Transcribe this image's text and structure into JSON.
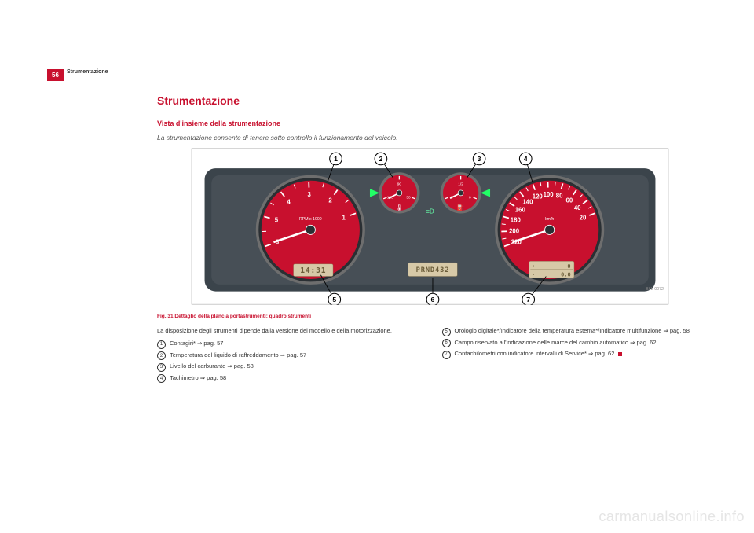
{
  "page_number": "56",
  "header_section": "Strumentazione",
  "title": "Strumentazione",
  "subtitle": "Vista d'insieme della strumentazione",
  "intro": "La strumentazione consente di tenere sotto controllo il funzionamento del veicolo.",
  "figure": {
    "caption": "Fig. 31   Dettaglio della plancia portastrumenti: quadro strumenti",
    "code": "B6L-0072",
    "callouts": [
      "1",
      "2",
      "3",
      "4",
      "5",
      "6",
      "7"
    ],
    "style": {
      "panel_bg": "#3b444b",
      "gauge_face": "#c8102e",
      "gauge_ring": "#6e6e6e",
      "tick_color": "#ffffff",
      "needle_color": "#ffffff",
      "lcd_bg": "#d7c9a7",
      "lcd_text": "#6b5d3a",
      "bubble_fill": "#ffffff",
      "bubble_stroke": "#000000",
      "line_color": "#000000"
    },
    "tachometer": {
      "unit_label": "RPM x 1000",
      "ticks": [
        "1",
        "2",
        "3",
        "4",
        "5",
        "6"
      ],
      "redline_from": 5,
      "lcd": "14:31"
    },
    "temp_gauge": {
      "ticks": [
        "50",
        "90",
        "130"
      ]
    },
    "fuel_gauge": {
      "ticks": [
        "0",
        "1/2",
        "1"
      ]
    },
    "speedometer": {
      "unit_label": "km/h",
      "ticks": [
        "20",
        "40",
        "60",
        "80",
        "100",
        "120",
        "140",
        "160",
        "180",
        "200",
        "220"
      ],
      "lcd_top": "0",
      "lcd_bottom": "0.0"
    },
    "center_lcd": "PRND432"
  },
  "left_col": {
    "lead": "La disposizione degli strumenti dipende dalla versione del modello e della motorizzazione.",
    "items": [
      {
        "n": "1",
        "text": "Contagiri* ⇒ pag. 57"
      },
      {
        "n": "2",
        "text": "Temperatura del liquido di raffreddamento ⇒ pag. 57"
      },
      {
        "n": "3",
        "text": "Livello del carburante ⇒ pag. 58"
      },
      {
        "n": "4",
        "text": "Tachimetro ⇒ pag. 58"
      }
    ]
  },
  "right_col": {
    "items": [
      {
        "n": "5",
        "text": "Orologio digitale*/Indicatore della temperatura esterna*/Indicatore multifunzione ⇒ pag. 58"
      },
      {
        "n": "6",
        "text": "Campo riservato all'indicazione delle marce del cambio automatico ⇒ pag. 62"
      },
      {
        "n": "7",
        "text": "Contachilometri con indicatore intervalli di Service* ⇒ pag. 62"
      }
    ]
  },
  "watermark": "carmanualsonline.info"
}
